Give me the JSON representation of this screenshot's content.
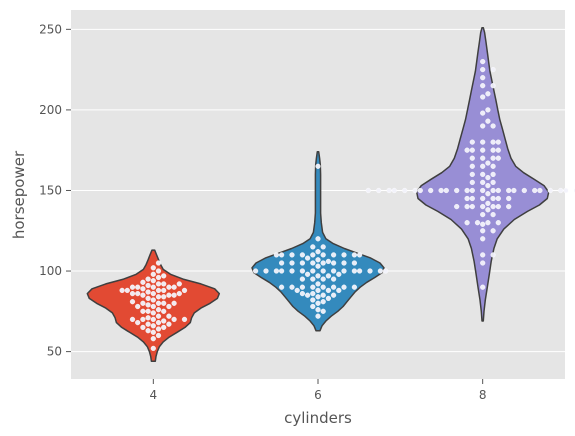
{
  "chart_data": {
    "type": "violin",
    "xlabel": "cylinders",
    "ylabel": "horsepower",
    "ylim": [
      33,
      262
    ],
    "yticks": [
      50,
      100,
      150,
      200,
      250
    ],
    "categories": [
      "4",
      "6",
      "8"
    ],
    "grid": true,
    "background": "#e5e5e5",
    "colors": [
      "#e24a33",
      "#348abd",
      "#988ed5"
    ],
    "series": [
      {
        "category": "4",
        "range": [
          44,
          113
        ],
        "density": [
          [
            44,
            0.03
          ],
          [
            47,
            0.04
          ],
          [
            50,
            0.06
          ],
          [
            53,
            0.09
          ],
          [
            56,
            0.15
          ],
          [
            59,
            0.24
          ],
          [
            62,
            0.36
          ],
          [
            65,
            0.48
          ],
          [
            68,
            0.56
          ],
          [
            71,
            0.58
          ],
          [
            74,
            0.62
          ],
          [
            77,
            0.72
          ],
          [
            80,
            0.86
          ],
          [
            83,
            0.97
          ],
          [
            86,
            1.0
          ],
          [
            89,
            0.93
          ],
          [
            92,
            0.72
          ],
          [
            95,
            0.45
          ],
          [
            98,
            0.26
          ],
          [
            101,
            0.15
          ],
          [
            104,
            0.11
          ],
          [
            107,
            0.08
          ],
          [
            110,
            0.05
          ],
          [
            113,
            0.02
          ]
        ],
        "points": [
          52,
          58,
          60,
          62,
          63,
          64,
          65,
          65,
          66,
          67,
          67,
          68,
          68,
          69,
          70,
          70,
          70,
          70,
          70,
          71,
          72,
          72,
          74,
          75,
          75,
          75,
          76,
          78,
          78,
          78,
          79,
          80,
          80,
          80,
          80,
          81,
          82,
          83,
          84,
          84,
          85,
          85,
          85,
          86,
          86,
          86,
          86,
          87,
          88,
          88,
          88,
          88,
          88,
          89,
          90,
          90,
          90,
          90,
          90,
          91,
          92,
          92,
          92,
          93,
          94,
          95,
          96,
          97,
          98,
          100,
          102,
          105
        ]
      },
      {
        "category": "6",
        "range": [
          63,
          174
        ],
        "density": [
          [
            63,
            0.03
          ],
          [
            66,
            0.06
          ],
          [
            69,
            0.12
          ],
          [
            72,
            0.2
          ],
          [
            75,
            0.3
          ],
          [
            78,
            0.38
          ],
          [
            81,
            0.44
          ],
          [
            84,
            0.5
          ],
          [
            87,
            0.56
          ],
          [
            90,
            0.64
          ],
          [
            93,
            0.74
          ],
          [
            96,
            0.86
          ],
          [
            99,
            0.97
          ],
          [
            102,
            1.0
          ],
          [
            105,
            0.94
          ],
          [
            108,
            0.8
          ],
          [
            111,
            0.6
          ],
          [
            114,
            0.4
          ],
          [
            117,
            0.23
          ],
          [
            120,
            0.12
          ],
          [
            124,
            0.07
          ],
          [
            130,
            0.05
          ],
          [
            136,
            0.04
          ],
          [
            142,
            0.04
          ],
          [
            148,
            0.04
          ],
          [
            154,
            0.04
          ],
          [
            160,
            0.04
          ],
          [
            166,
            0.035
          ],
          [
            170,
            0.025
          ],
          [
            174,
            0.01
          ]
        ],
        "points": [
          72,
          75,
          76,
          78,
          80,
          81,
          82,
          83,
          84,
          85,
          85,
          85,
          86,
          86,
          88,
          88,
          88,
          88,
          90,
          90,
          90,
          90,
          90,
          90,
          90,
          90,
          92,
          95,
          95,
          95,
          95,
          97,
          97,
          98,
          98,
          100,
          100,
          100,
          100,
          100,
          100,
          100,
          100,
          100,
          100,
          100,
          100,
          100,
          100,
          100,
          103,
          105,
          105,
          105,
          105,
          105,
          105,
          105,
          105,
          106,
          107,
          108,
          110,
          110,
          110,
          110,
          110,
          110,
          110,
          110,
          110,
          110,
          112,
          115,
          115,
          120,
          165
        ]
      },
      {
        "category": "8",
        "range": [
          69,
          251
        ],
        "density": [
          [
            69,
            0.01
          ],
          [
            75,
            0.02
          ],
          [
            82,
            0.04
          ],
          [
            90,
            0.07
          ],
          [
            98,
            0.1
          ],
          [
            106,
            0.13
          ],
          [
            114,
            0.17
          ],
          [
            120,
            0.22
          ],
          [
            126,
            0.32
          ],
          [
            132,
            0.48
          ],
          [
            137,
            0.68
          ],
          [
            141,
            0.86
          ],
          [
            145,
            0.98
          ],
          [
            149,
            1.0
          ],
          [
            153,
            0.93
          ],
          [
            157,
            0.78
          ],
          [
            161,
            0.62
          ],
          [
            165,
            0.5
          ],
          [
            170,
            0.43
          ],
          [
            176,
            0.38
          ],
          [
            182,
            0.34
          ],
          [
            188,
            0.3
          ],
          [
            194,
            0.26
          ],
          [
            200,
            0.23
          ],
          [
            206,
            0.2
          ],
          [
            212,
            0.17
          ],
          [
            218,
            0.14
          ],
          [
            224,
            0.11
          ],
          [
            230,
            0.09
          ],
          [
            236,
            0.07
          ],
          [
            242,
            0.05
          ],
          [
            248,
            0.03
          ],
          [
            251,
            0.01
          ]
        ],
        "points": [
          90,
          105,
          110,
          110,
          120,
          125,
          125,
          129,
          130,
          130,
          130,
          130,
          135,
          135,
          138,
          140,
          140,
          140,
          140,
          140,
          140,
          140,
          142,
          145,
          145,
          145,
          145,
          145,
          145,
          148,
          150,
          150,
          150,
          150,
          150,
          150,
          150,
          150,
          150,
          150,
          150,
          150,
          150,
          150,
          150,
          150,
          150,
          150,
          150,
          150,
          150,
          150,
          150,
          150,
          150,
          150,
          150,
          153,
          155,
          155,
          155,
          158,
          160,
          160,
          160,
          165,
          165,
          165,
          167,
          170,
          170,
          170,
          170,
          175,
          175,
          175,
          175,
          175,
          180,
          180,
          180,
          180,
          190,
          190,
          193,
          198,
          200,
          208,
          210,
          215,
          215,
          220,
          225,
          225,
          230
        ]
      }
    ]
  }
}
